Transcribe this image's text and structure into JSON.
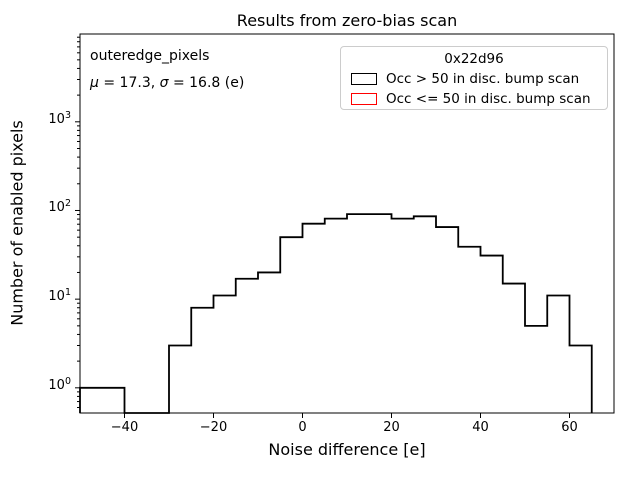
{
  "title": "Results from zero-bias scan",
  "axes": {
    "xlabel": "Noise difference [e]",
    "ylabel": "Number of enabled pixels"
  },
  "annotation": {
    "line1": "outeredge_pixels",
    "mu_symbol": "μ",
    "mu_text": " = 17.3, ",
    "sigma_symbol": "σ",
    "sigma_text": " = 16.8 (e)"
  },
  "legend": {
    "title": "0x22d96",
    "entries": [
      {
        "label": "Occ > 50 in disc. bump scan",
        "color": "#000000"
      },
      {
        "label": "Occ <= 50 in disc. bump scan",
        "color": "#ff0000"
      }
    ]
  },
  "chart_data": {
    "type": "histogram-step",
    "title": "Results from zero-bias scan",
    "xlabel": "Noise difference [e]",
    "ylabel": "Number of enabled pixels",
    "x_scale": "linear",
    "y_scale": "log",
    "xlim": [
      -50,
      70
    ],
    "ylim": [
      0.52,
      9780
    ],
    "xticks": [
      -40,
      -20,
      0,
      20,
      40,
      60
    ],
    "ytick_exponents": [
      0,
      1,
      2,
      3
    ],
    "grid": false,
    "legend_position": "upper right",
    "bin_edges": [
      -50,
      -45,
      -40,
      -35,
      -30,
      -25,
      -20,
      -15,
      -10,
      -5,
      0,
      5,
      10,
      15,
      20,
      25,
      30,
      35,
      40,
      45,
      50,
      55,
      60,
      65
    ],
    "series": [
      {
        "name": "Occ > 50 in disc. bump scan",
        "color": "#000000",
        "counts": [
          1,
          1,
          0,
          0,
          3,
          8,
          11,
          17,
          20,
          50,
          71,
          81,
          91,
          91,
          81,
          86,
          65,
          39,
          31,
          15,
          5,
          11,
          3
        ]
      },
      {
        "name": "Occ <= 50 in disc. bump scan",
        "color": "#ff0000",
        "counts": []
      }
    ],
    "stats": {
      "mu": 17.3,
      "sigma": 16.8
    }
  }
}
